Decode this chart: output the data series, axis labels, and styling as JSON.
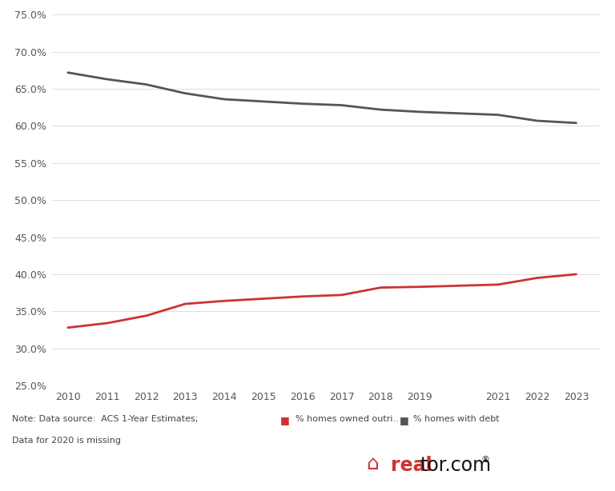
{
  "years": [
    2010,
    2011,
    2012,
    2013,
    2014,
    2015,
    2016,
    2017,
    2018,
    2019,
    2021,
    2022,
    2023
  ],
  "homes_with_debt": [
    0.672,
    0.663,
    0.656,
    0.644,
    0.636,
    0.633,
    0.63,
    0.628,
    0.622,
    0.619,
    0.615,
    0.607,
    0.604
  ],
  "homes_owned_outright": [
    0.328,
    0.334,
    0.344,
    0.36,
    0.364,
    0.367,
    0.37,
    0.372,
    0.382,
    0.383,
    0.386,
    0.395,
    0.4
  ],
  "debt_color": "#555555",
  "outright_color": "#cc3333",
  "background_color": "#ffffff",
  "grid_color": "#dddddd",
  "ylim_min": 0.25,
  "ylim_max": 0.75,
  "yticks": [
    0.25,
    0.3,
    0.35,
    0.4,
    0.45,
    0.5,
    0.55,
    0.6,
    0.65,
    0.7,
    0.75
  ],
  "note_line1": "Note: Data source:  ACS 1-Year Estimates;",
  "note_line2": "Data for 2020 is missing",
  "legend_outright_label": "% homes owned outri..",
  "legend_debt_label": "% homes with debt",
  "line_width": 2.0,
  "tick_fontsize": 9,
  "note_fontsize": 8,
  "legend_fontsize": 8
}
